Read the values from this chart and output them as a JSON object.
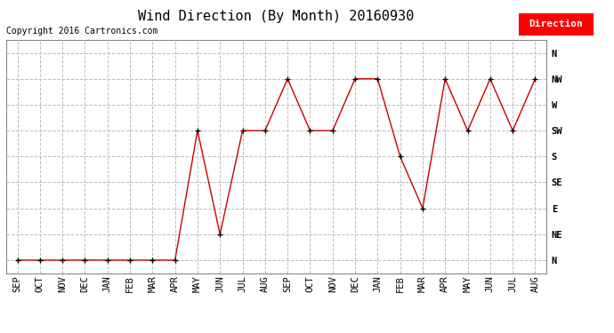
{
  "title": "Wind Direction (By Month) 20160930",
  "copyright": "Copyright 2016 Cartronics.com",
  "legend_label": "Direction",
  "legend_bg": "#ff0000",
  "legend_text_color": "#ffffff",
  "x_labels": [
    "SEP",
    "OCT",
    "NOV",
    "DEC",
    "JAN",
    "FEB",
    "MAR",
    "APR",
    "MAY",
    "JUN",
    "JUL",
    "AUG",
    "SEP",
    "OCT",
    "NOV",
    "DEC",
    "JAN",
    "FEB",
    "MAR",
    "APR",
    "MAY",
    "JUN",
    "JUL",
    "AUG"
  ],
  "y_labels": [
    "N",
    "NE",
    "E",
    "SE",
    "S",
    "SW",
    "W",
    "NW",
    "N"
  ],
  "y_values": [
    0,
    1,
    2,
    3,
    4,
    5,
    6,
    7,
    8
  ],
  "direction_data": [
    0,
    0,
    0,
    0,
    0,
    0,
    0,
    0,
    5,
    1,
    5,
    5,
    7,
    5,
    5,
    7,
    7,
    4,
    2,
    7,
    5,
    7,
    5,
    7
  ],
  "line_color": "#cc0000",
  "marker": "+",
  "marker_color": "#000000",
  "background_color": "#ffffff",
  "plot_bg_color": "#ffffff",
  "grid_color": "#bbbbbb",
  "grid_style": "--",
  "title_fontsize": 11,
  "label_fontsize": 7.5,
  "copyright_fontsize": 7
}
